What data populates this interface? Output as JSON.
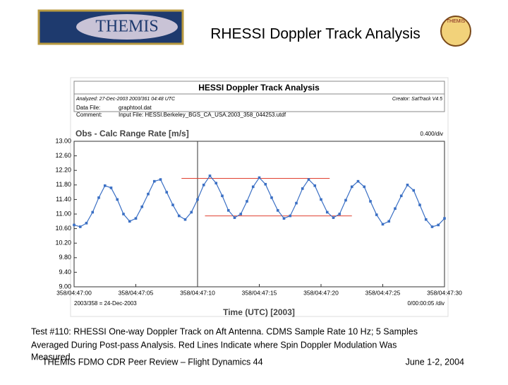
{
  "slide": {
    "logo_text": "THEMIS",
    "title": "RHESSI Doppler Track Analysis",
    "caption": [
      "Test #110: RHESSI One-way Doppler Track on Aft Antenna. CDMS Sample Rate 10 Hz; 5 Samples",
      "Averaged During Post-pass Analysis. Red Lines Indicate where Spin Doppler Modulation Was",
      "Measured."
    ],
    "footer_left": "THEMIS FDMO CDR Peer Review – Flight Dynamics 44",
    "footer_right": "June 1-2, 2004"
  },
  "image_header": {
    "title": "HESSI Doppler Track Analysis",
    "analyzed": "Analyzed: 27-Dec-2003 2003/361 04:48 UTC",
    "creator": "Creator: SatTrack V4.5",
    "data_file_label": "Data File:",
    "data_file": "graphtool.dat",
    "comment_label": "Comment:",
    "comment": "Input File: HESSI.Berkeley_BGS_CA_USA.2003_358_044253.utdf"
  },
  "chart_data": {
    "type": "line",
    "title": "Obs - Calc Range Rate [m/s]",
    "y_scale_note": "0.400/div",
    "x_label": "Time (UTC) [2003]",
    "x_note_left": "2003/358 = 24-Dec-2003",
    "x_note_right": "0/00:00:05 /div",
    "x": [
      0,
      0.5,
      1,
      1.5,
      2,
      2.5,
      3,
      3.5,
      4,
      4.5,
      5,
      5.5,
      6,
      6.5,
      7,
      7.5,
      8,
      8.5,
      9,
      9.5,
      10,
      10.5,
      11,
      11.5,
      12,
      12.5,
      13,
      13.5,
      14,
      14.5,
      15,
      15.5,
      16,
      16.5,
      17,
      17.5,
      18,
      18.5,
      19,
      19.5,
      20,
      20.5,
      21,
      21.5,
      22,
      22.5,
      23,
      23.5,
      24,
      24.5,
      25,
      25.5,
      26,
      26.5,
      27,
      27.5,
      28,
      28.5,
      29,
      29.5,
      30
    ],
    "series": [
      {
        "color": "#3a6fc4",
        "values": [
          10.7,
          10.65,
          10.75,
          11.05,
          11.45,
          11.78,
          11.72,
          11.4,
          11.0,
          10.8,
          10.88,
          11.2,
          11.55,
          11.9,
          11.95,
          11.6,
          11.25,
          10.95,
          10.85,
          11.05,
          11.4,
          11.8,
          12.05,
          11.85,
          11.5,
          11.1,
          10.9,
          11.0,
          11.35,
          11.75,
          12.0,
          11.82,
          11.45,
          11.1,
          10.88,
          10.95,
          11.3,
          11.7,
          11.95,
          11.78,
          11.4,
          11.05,
          10.9,
          11.0,
          11.38,
          11.75,
          11.9,
          11.75,
          11.35,
          10.98,
          10.72,
          10.8,
          11.15,
          11.5,
          11.8,
          11.65,
          11.25,
          10.85,
          10.65,
          10.7,
          10.88
        ]
      }
    ],
    "reference_lines": [
      {
        "color": "#e04030",
        "y": 11.98,
        "x": [
          8.7,
          20.7
        ]
      },
      {
        "color": "#e04030",
        "y": 10.95,
        "x": [
          10.6,
          22.5
        ]
      }
    ],
    "marker_x": 10,
    "xlim": [
      0,
      30
    ],
    "xticks": [
      {
        "value": 0,
        "label": "358/04:47:00"
      },
      {
        "value": 5,
        "label": "358/04:47:05"
      },
      {
        "value": 10,
        "label": "358/04:47:10"
      },
      {
        "value": 15,
        "label": "358/04:47:15"
      },
      {
        "value": 20,
        "label": "358/04:47:20"
      },
      {
        "value": 25,
        "label": "358/04:47:25"
      },
      {
        "value": 30,
        "label": "358/04:47:30"
      }
    ],
    "ylim": [
      9,
      13
    ],
    "yticks": [
      {
        "value": 9,
        "label": "9.00"
      },
      {
        "value": 9.4,
        "label": "9.40"
      },
      {
        "value": 9.8,
        "label": "9.80"
      },
      {
        "value": 10.2,
        "label": "10.20"
      },
      {
        "value": 10.6,
        "label": "10.60"
      },
      {
        "value": 11,
        "label": "11.00"
      },
      {
        "value": 11.4,
        "label": "11.40"
      },
      {
        "value": 11.8,
        "label": "11.80"
      },
      {
        "value": 12.2,
        "label": "12.20"
      },
      {
        "value": 12.6,
        "label": "12.60"
      },
      {
        "value": 13,
        "label": "13.00"
      }
    ],
    "grid": false
  }
}
